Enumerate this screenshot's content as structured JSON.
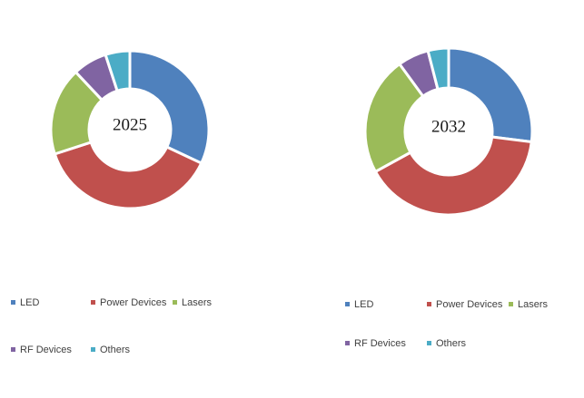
{
  "chart_data": [
    {
      "type": "donut",
      "center_label": "2025",
      "categories": [
        "LED",
        "Power Devices",
        "Lasers",
        "RF Devices",
        "Others"
      ],
      "values": [
        32,
        38,
        18,
        7,
        5
      ],
      "colors": [
        "#4f81bd",
        "#c0504d",
        "#9bbb59",
        "#8064a2",
        "#4bacc6"
      ]
    },
    {
      "type": "donut",
      "center_label": "2032",
      "categories": [
        "LED",
        "Power Devices",
        "Lasers",
        "RF Devices",
        "Others"
      ],
      "values": [
        27,
        40,
        23,
        6,
        4
      ],
      "colors": [
        "#4f81bd",
        "#c0504d",
        "#9bbb59",
        "#8064a2",
        "#4bacc6"
      ]
    }
  ]
}
